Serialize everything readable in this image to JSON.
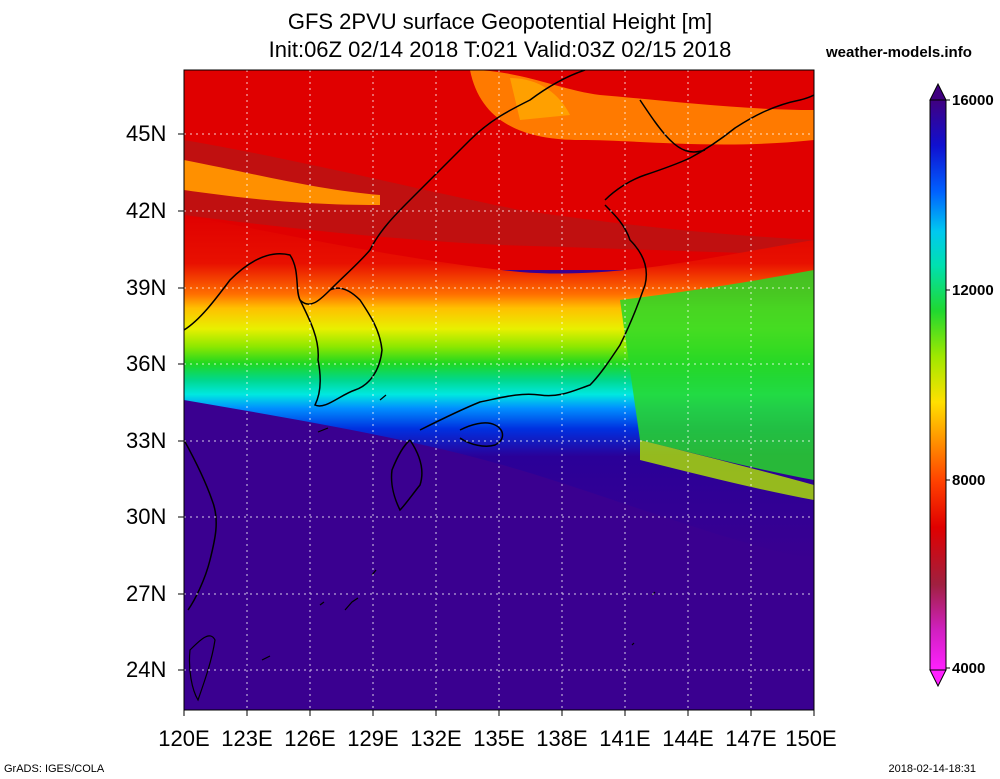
{
  "header": {
    "title_line1": "GFS 2PVU surface Geopotential Height [m]",
    "title_line2": "Init:06Z 02/14 2018 T:021 Valid:03Z 02/15 2018",
    "brand": "weather-models.info"
  },
  "map": {
    "lat_labels": [
      "45N",
      "42N",
      "39N",
      "36N",
      "33N",
      "30N",
      "27N",
      "24N"
    ],
    "lon_labels": [
      "120E",
      "123E",
      "126E",
      "129E",
      "132E",
      "135E",
      "138E",
      "141E",
      "144E",
      "147E",
      "150E"
    ],
    "lat_range": [
      22.5,
      47.5
    ],
    "lon_range": [
      120,
      150
    ]
  },
  "colorbar": {
    "labels": [
      "16000",
      "12000",
      "8000",
      "4000"
    ],
    "colors": [
      "#ff20ff",
      "#e030d0",
      "#c02080",
      "#a02020",
      "#c00000",
      "#e00000",
      "#ff2000",
      "#ff6000",
      "#ff9000",
      "#ffc000",
      "#ffe800",
      "#d0f000",
      "#90e800",
      "#40e000",
      "#00d840",
      "#00e090",
      "#00e8d8",
      "#00c8f0",
      "#00a0ff",
      "#0070ff",
      "#0040f0",
      "#1010d0",
      "#2000b0",
      "#300090",
      "#400080"
    ]
  },
  "footer": {
    "left": "GrADS: IGES/COLA",
    "right": "2018-02-14-18:31"
  }
}
